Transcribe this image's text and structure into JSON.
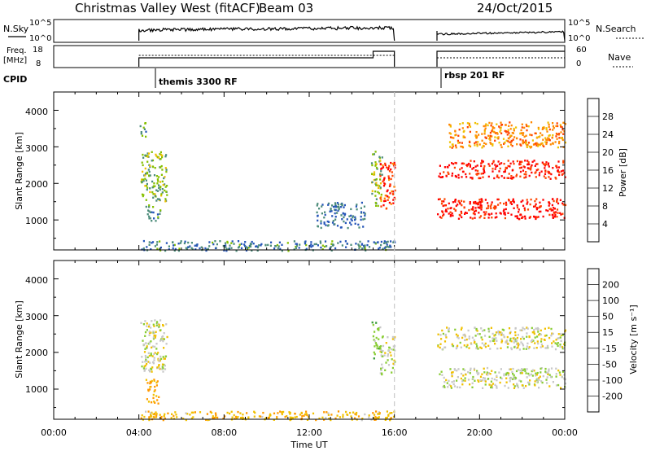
{
  "header": {
    "title": "Christmas Valley West (fitACF)",
    "beam": "Beam 03",
    "date": "24/Oct/2015"
  },
  "top_panels": {
    "nsky_label": "N.Sky",
    "nsky_ticks": [
      "10^5",
      "10^0"
    ],
    "nsearch_label": "N.Search",
    "nsearch_ticks": [
      "10^5",
      "10^0"
    ],
    "freq_label_line1": "Freq.",
    "freq_label_line2": "[MHz]",
    "freq_ticks": [
      "18",
      "8"
    ],
    "nave_label": "Nave",
    "nave_ticks": [
      "60",
      "0"
    ],
    "cpid_label": "CPID",
    "cpid_segments": [
      {
        "start_hour": 4.0,
        "end_hour": 16.0,
        "label": "themis 3300 RF"
      },
      {
        "start_hour": 18.0,
        "end_hour": 24.0,
        "label": "rbsp 201 RF"
      }
    ]
  },
  "colors": {
    "power_scale": [
      "#0000ff",
      "#2656b8",
      "#4c8c7a",
      "#86c000",
      "#f0c000",
      "#ff8800",
      "#ff4400",
      "#ff0000"
    ],
    "velocity_scale": [
      "#ff0000",
      "#ff5500",
      "#ff9900",
      "#f0c000",
      "#c8c8c8",
      "#88cc33",
      "#339933",
      "#337799",
      "#2244aa"
    ],
    "gap_line": "#c8c8c8"
  },
  "chart_data": [
    {
      "type": "heatmap",
      "panel": "power",
      "xlabel": "",
      "ylabel": "Slant Range [km]",
      "xlim": [
        0,
        24
      ],
      "ylim": [
        180,
        4500
      ],
      "y_ticks": [
        "1000",
        "2000",
        "3000",
        "4000"
      ],
      "colorbar": {
        "label": "Power [dB]",
        "range": [
          0,
          32
        ],
        "ticks": [
          "4",
          "8",
          "12",
          "16",
          "20",
          "24",
          "28"
        ]
      },
      "features": [
        {
          "t0": 4.05,
          "t1": 5.3,
          "r0": 1500,
          "r1": 2900,
          "value": 14
        },
        {
          "t0": 4.0,
          "t1": 4.3,
          "r0": 3300,
          "r1": 3700,
          "value": 10
        },
        {
          "t0": 4.3,
          "t1": 5.0,
          "r0": 1000,
          "r1": 1500,
          "value": 10
        },
        {
          "t0": 14.9,
          "t1": 15.4,
          "r0": 1400,
          "r1": 2900,
          "value": 14
        },
        {
          "t0": 15.3,
          "t1": 16.0,
          "r0": 1300,
          "r1": 2600,
          "value": 27
        },
        {
          "t0": 18.0,
          "t1": 24.0,
          "r0": 2150,
          "r1": 2650,
          "value": 29
        },
        {
          "t0": 18.0,
          "t1": 24.0,
          "r0": 1050,
          "r1": 1600,
          "value": 29
        },
        {
          "t0": 18.5,
          "t1": 24.0,
          "r0": 3000,
          "r1": 3700,
          "value": 22
        },
        {
          "t0": 4.0,
          "t1": 16.0,
          "r0": 180,
          "r1": 450,
          "value": 9
        },
        {
          "t0": 12.3,
          "t1": 14.6,
          "r0": 800,
          "r1": 1500,
          "value": 8
        }
      ]
    },
    {
      "type": "heatmap",
      "panel": "velocity",
      "xlabel": "Time UT",
      "ylabel": "Slant Range [km]",
      "xlim": [
        0,
        24
      ],
      "ylim": [
        180,
        4500
      ],
      "y_ticks": [
        "1000",
        "2000",
        "3000",
        "4000"
      ],
      "x_ticks": [
        "00:00",
        "04:00",
        "08:00",
        "12:00",
        "16:00",
        "20:00",
        "00:00"
      ],
      "colorbar": {
        "label": "Velocity [m s⁻¹]",
        "ticks": [
          "-200",
          "-100",
          "-50",
          "-15",
          "15",
          "50",
          "100",
          "200"
        ]
      },
      "features": [
        {
          "t0": 4.05,
          "t1": 5.3,
          "r0": 1500,
          "r1": 2900,
          "value": 0
        },
        {
          "t0": 4.3,
          "t1": 4.9,
          "r0": 600,
          "r1": 1300,
          "value": -60
        },
        {
          "t0": 14.9,
          "t1": 15.3,
          "r0": 1700,
          "r1": 2900,
          "value": 40
        },
        {
          "t0": 15.3,
          "t1": 16.0,
          "r0": 1400,
          "r1": 2500,
          "value": 0
        },
        {
          "t0": 18.0,
          "t1": 24.0,
          "r0": 2100,
          "r1": 2700,
          "value": 0
        },
        {
          "t0": 18.0,
          "t1": 24.0,
          "r0": 1050,
          "r1": 1600,
          "value": 0
        },
        {
          "t0": 4.0,
          "t1": 16.0,
          "r0": 180,
          "r1": 420,
          "value": -40
        }
      ]
    }
  ]
}
